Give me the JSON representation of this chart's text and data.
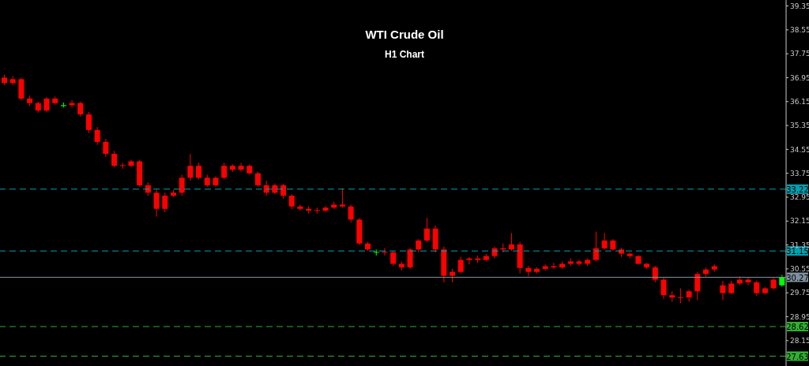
{
  "chart_data": {
    "type": "candlestick",
    "title": "WTI Crude Oil",
    "subtitle": "H1 Chart",
    "categories": [
      null,
      null,
      null,
      null,
      null,
      null,
      null,
      null,
      null,
      null,
      null,
      null,
      null,
      null,
      null,
      null,
      null,
      null,
      null,
      null,
      null,
      null,
      null,
      null,
      null,
      null,
      null,
      null,
      null,
      null,
      null,
      null,
      null,
      null,
      null,
      null,
      null,
      null,
      null,
      null,
      null,
      null,
      null,
      null,
      null,
      null,
      null,
      null,
      null,
      null,
      null,
      null,
      null,
      null,
      null,
      null,
      null,
      null,
      null,
      null,
      null,
      null,
      null,
      null,
      null,
      null,
      null,
      null,
      null,
      null,
      null,
      null,
      null,
      null,
      null,
      null,
      null,
      null,
      null,
      null,
      null,
      null,
      null,
      null,
      null,
      null,
      null,
      null,
      null,
      null,
      null,
      null,
      null
    ],
    "ohlc": [
      [
        36.95,
        37.05,
        36.7,
        36.77
      ],
      [
        36.9,
        37.0,
        36.7,
        36.77
      ],
      [
        36.9,
        36.95,
        36.2,
        36.25
      ],
      [
        36.25,
        36.35,
        36.0,
        36.1
      ],
      [
        36.1,
        36.15,
        35.78,
        35.85
      ],
      [
        36.25,
        36.3,
        35.8,
        35.85
      ],
      [
        36.25,
        36.32,
        36.05,
        36.1
      ],
      [
        36.0,
        36.12,
        35.95,
        36.03
      ],
      [
        36.1,
        36.2,
        35.95,
        36.03
      ],
      [
        36.1,
        36.15,
        35.65,
        35.72
      ],
      [
        35.72,
        35.8,
        35.1,
        35.2
      ],
      [
        35.2,
        35.3,
        34.7,
        34.8
      ],
      [
        34.8,
        34.9,
        34.3,
        34.4
      ],
      [
        34.4,
        34.5,
        33.95,
        34.0
      ],
      [
        34.02,
        34.1,
        33.9,
        34.0
      ],
      [
        34.15,
        34.2,
        33.95,
        34.0
      ],
      [
        34.15,
        34.2,
        33.3,
        33.35
      ],
      [
        33.35,
        33.45,
        33.0,
        33.1
      ],
      [
        33.1,
        33.2,
        32.3,
        32.56
      ],
      [
        33.0,
        33.1,
        32.45,
        32.56
      ],
      [
        33.1,
        33.2,
        32.95,
        33.0
      ],
      [
        33.6,
        33.7,
        33.0,
        33.1
      ],
      [
        34.0,
        34.4,
        33.5,
        33.6
      ],
      [
        34.0,
        34.1,
        33.55,
        33.6
      ],
      [
        33.6,
        33.7,
        33.3,
        33.35
      ],
      [
        33.6,
        33.65,
        33.3,
        33.35
      ],
      [
        34.0,
        34.1,
        33.55,
        33.6
      ],
      [
        34.0,
        34.05,
        33.8,
        33.87
      ],
      [
        34.0,
        34.1,
        33.8,
        33.87
      ],
      [
        34.0,
        34.05,
        33.7,
        33.75
      ],
      [
        33.75,
        33.8,
        33.3,
        33.35
      ],
      [
        33.35,
        33.5,
        33.0,
        33.1
      ],
      [
        33.35,
        33.4,
        33.05,
        33.1
      ],
      [
        33.35,
        33.4,
        32.9,
        33.0
      ],
      [
        33.0,
        33.05,
        32.55,
        32.64
      ],
      [
        32.64,
        32.7,
        32.5,
        32.56
      ],
      [
        32.56,
        32.65,
        32.4,
        32.5
      ],
      [
        32.52,
        32.6,
        32.4,
        32.5
      ],
      [
        32.6,
        32.65,
        32.45,
        32.5
      ],
      [
        32.7,
        32.8,
        32.55,
        32.6
      ],
      [
        32.7,
        33.25,
        32.6,
        32.64
      ],
      [
        32.64,
        32.7,
        32.1,
        32.2
      ],
      [
        32.2,
        32.25,
        31.35,
        31.4
      ],
      [
        31.4,
        31.45,
        31.15,
        31.2
      ],
      [
        31.1,
        31.2,
        31.0,
        31.12
      ],
      [
        31.12,
        31.25,
        31.0,
        31.1
      ],
      [
        31.1,
        31.15,
        30.65,
        30.72
      ],
      [
        30.72,
        30.8,
        30.5,
        30.6
      ],
      [
        31.2,
        31.25,
        30.55,
        30.6
      ],
      [
        31.5,
        31.55,
        31.1,
        31.2
      ],
      [
        31.9,
        32.25,
        31.45,
        31.5
      ],
      [
        31.9,
        32.0,
        31.1,
        31.2
      ],
      [
        31.2,
        31.3,
        30.1,
        30.32
      ],
      [
        30.45,
        30.55,
        30.1,
        30.32
      ],
      [
        30.85,
        30.95,
        30.4,
        30.45
      ],
      [
        30.9,
        30.95,
        30.7,
        30.85
      ],
      [
        30.9,
        31.0,
        30.75,
        30.85
      ],
      [
        30.98,
        31.05,
        30.8,
        30.85
      ],
      [
        31.24,
        31.3,
        30.9,
        30.98
      ],
      [
        31.24,
        31.4,
        31.1,
        31.2
      ],
      [
        31.37,
        31.75,
        31.15,
        31.2
      ],
      [
        31.37,
        31.45,
        30.4,
        30.58
      ],
      [
        30.58,
        30.65,
        30.3,
        30.45
      ],
      [
        30.55,
        30.6,
        30.4,
        30.45
      ],
      [
        30.64,
        30.7,
        30.5,
        30.55
      ],
      [
        30.64,
        30.75,
        30.55,
        30.6
      ],
      [
        30.72,
        30.8,
        30.55,
        30.6
      ],
      [
        30.8,
        30.9,
        30.65,
        30.72
      ],
      [
        30.8,
        30.85,
        30.65,
        30.72
      ],
      [
        30.85,
        30.9,
        30.65,
        30.72
      ],
      [
        31.24,
        31.8,
        30.8,
        30.85
      ],
      [
        31.5,
        31.75,
        31.2,
        31.24
      ],
      [
        31.5,
        31.55,
        31.15,
        31.2
      ],
      [
        31.2,
        31.25,
        30.95,
        31.06
      ],
      [
        31.06,
        31.1,
        30.9,
        30.98
      ],
      [
        30.98,
        31.0,
        30.7,
        30.72
      ],
      [
        30.72,
        30.75,
        30.55,
        30.6
      ],
      [
        30.6,
        30.65,
        30.1,
        30.19
      ],
      [
        30.19,
        30.25,
        29.55,
        29.67
      ],
      [
        29.67,
        29.8,
        29.45,
        29.59
      ],
      [
        29.6,
        29.9,
        29.4,
        29.59
      ],
      [
        29.8,
        29.85,
        29.45,
        29.6
      ],
      [
        30.38,
        30.45,
        29.5,
        29.8
      ],
      [
        30.53,
        30.6,
        30.3,
        30.38
      ],
      [
        30.64,
        30.7,
        30.45,
        30.53
      ],
      [
        30.0,
        30.15,
        29.5,
        29.74
      ],
      [
        30.06,
        30.15,
        29.7,
        29.74
      ],
      [
        30.19,
        30.3,
        30.0,
        30.06
      ],
      [
        30.19,
        30.25,
        30.0,
        30.1
      ],
      [
        30.1,
        30.15,
        29.65,
        29.74
      ],
      [
        29.9,
        29.95,
        29.7,
        29.74
      ],
      [
        30.19,
        30.25,
        29.85,
        29.9
      ],
      [
        30.0,
        30.35,
        29.95,
        30.27
      ]
    ],
    "colors": [
      "#ff0000",
      "#ff0000",
      "#ff0000",
      "#ff0000",
      "#ff0000",
      "#ff0000",
      "#ff0000",
      "#00ff00",
      "#ff0000",
      "#ff0000",
      "#ff0000",
      "#ff0000",
      "#ff0000",
      "#ff0000",
      "#ff0000",
      "#ff0000",
      "#ff0000",
      "#ff0000",
      "#ff0000",
      "#ff0000",
      "#ff0000",
      "#ff0000",
      "#ff0000",
      "#ff0000",
      "#ff0000",
      "#ff0000",
      "#ff0000",
      "#ff0000",
      "#ff0000",
      "#ff0000",
      "#ff0000",
      "#ff0000",
      "#ff0000",
      "#ff0000",
      "#ff0000",
      "#ff0000",
      "#ff0000",
      "#ff0000",
      "#ff0000",
      "#ff0000",
      "#ff0000",
      "#ff0000",
      "#ff0000",
      "#ff0000",
      "#00ff00",
      "#ff0000",
      "#ff0000",
      "#ff0000",
      "#ff0000",
      "#ff0000",
      "#ff0000",
      "#ff0000",
      "#ff0000",
      "#ff0000",
      "#ff0000",
      "#ff0000",
      "#ff0000",
      "#ff0000",
      "#ff0000",
      "#ff0000",
      "#ff0000",
      "#ff0000",
      "#ff0000",
      "#ff0000",
      "#ff0000",
      "#ff0000",
      "#ff0000",
      "#ff0000",
      "#ff0000",
      "#ff0000",
      "#ff0000",
      "#ff0000",
      "#ff0000",
      "#ff0000",
      "#ff0000",
      "#ff0000",
      "#ff0000",
      "#ff0000",
      "#ff0000",
      "#ff0000",
      "#ff0000",
      "#ff0000",
      "#ff0000",
      "#ff0000",
      "#ff0000",
      "#ff0000",
      "#ff0000",
      "#ff0000",
      "#ff0000",
      "#ff0000",
      "#ff0000",
      "#ff0000",
      "#00ff00"
    ],
    "ylim": [
      27.3,
      39.55
    ],
    "yticks": [
      28.15,
      28.95,
      29.75,
      30.55,
      31.35,
      32.15,
      32.95,
      33.75,
      34.55,
      35.35,
      36.15,
      36.95,
      37.75,
      38.55,
      39.35
    ],
    "ref_lines": [
      {
        "axis": "y",
        "value": 33.22,
        "label": "33.22",
        "color": "#00a0b0",
        "line_style": "dashed"
      },
      {
        "axis": "y",
        "value": 31.15,
        "label": "31.15",
        "color": "#00a0b0",
        "line_style": "dashed"
      },
      {
        "axis": "y",
        "value": 30.27,
        "label": "30.27",
        "color": "#8090a0",
        "line_style": "solid"
      },
      {
        "axis": "y",
        "value": 28.62,
        "label": "28.62",
        "color": "#30b030",
        "line_style": "dashed"
      },
      {
        "axis": "y",
        "value": 27.63,
        "label": "27.63",
        "color": "#30b030",
        "line_style": "dashed"
      }
    ],
    "grid": false,
    "legend": false
  }
}
